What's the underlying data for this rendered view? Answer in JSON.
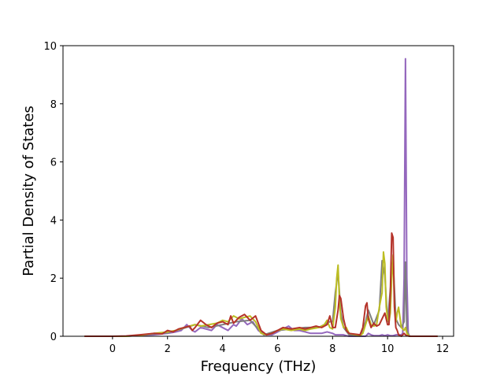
{
  "chart_data": {
    "type": "line",
    "title": "",
    "xlabel": "Frequency (THz)",
    "ylabel": "Partial Density of States",
    "xlim": [
      -1.8,
      12.4
    ],
    "ylim": [
      0,
      10
    ],
    "xticks": [
      0,
      2,
      4,
      6,
      8,
      10,
      12
    ],
    "yticks": [
      0,
      2,
      4,
      6,
      8,
      10
    ],
    "grid": false,
    "legend": "none",
    "series": [
      {
        "color": "#9467bd",
        "x": [
          -1.0,
          0.0,
          0.5,
          1.0,
          1.5,
          1.8,
          2.0,
          2.3,
          2.5,
          2.7,
          2.8,
          2.9,
          3.0,
          3.2,
          3.4,
          3.6,
          3.8,
          4.0,
          4.2,
          4.4,
          4.5,
          4.7,
          4.9,
          5.1,
          5.3,
          5.5,
          5.8,
          6.0,
          6.2,
          6.4,
          6.6,
          6.8,
          7.0,
          7.2,
          7.4,
          7.6,
          7.8,
          8.0,
          8.1,
          8.2,
          8.3,
          8.4,
          8.5,
          8.6,
          9.0,
          9.2,
          9.3,
          9.4,
          9.5,
          9.7,
          9.8,
          9.9,
          10.0,
          10.1,
          10.2,
          10.3,
          10.4,
          10.5,
          10.55,
          10.6,
          10.65,
          10.7,
          10.75,
          10.8,
          11.0,
          11.8
        ],
        "values": [
          0,
          0,
          0,
          0.03,
          0.05,
          0.08,
          0.1,
          0.15,
          0.2,
          0.4,
          0.3,
          0.2,
          0.15,
          0.3,
          0.25,
          0.2,
          0.4,
          0.3,
          0.2,
          0.4,
          0.35,
          0.6,
          0.4,
          0.5,
          0.2,
          0.05,
          0.05,
          0.15,
          0.25,
          0.35,
          0.2,
          0.2,
          0.15,
          0.1,
          0.1,
          0.1,
          0.15,
          0.1,
          0.05,
          0.05,
          0.05,
          0.05,
          0.02,
          0,
          0,
          0,
          0.1,
          0.05,
          0.02,
          0.02,
          0.05,
          0.02,
          0.05,
          0.02,
          0.02,
          0.05,
          0.05,
          0.05,
          0.1,
          2.0,
          9.55,
          2.0,
          0.1,
          0,
          0,
          0
        ]
      },
      {
        "color": "#7f7f7f",
        "x": [
          -1.0,
          0.5,
          1.5,
          2.0,
          2.5,
          3.0,
          3.5,
          4.0,
          4.5,
          5.0,
          5.5,
          6.0,
          6.5,
          7.0,
          7.5,
          7.9,
          8.0,
          8.1,
          8.2,
          8.3,
          8.4,
          8.6,
          9.0,
          9.2,
          9.3,
          9.5,
          9.7,
          9.8,
          9.9,
          10.0,
          10.1,
          10.2,
          10.3,
          10.4,
          10.5,
          10.6,
          10.65,
          10.7,
          10.8,
          11.8
        ],
        "values": [
          0,
          0,
          0.08,
          0.12,
          0.25,
          0.4,
          0.3,
          0.4,
          0.5,
          0.55,
          0.05,
          0.2,
          0.25,
          0.3,
          0.3,
          0.5,
          0.5,
          1.5,
          2.2,
          0.8,
          0.3,
          0.05,
          0,
          0.5,
          0.9,
          0.4,
          0.9,
          2.6,
          2.1,
          0.5,
          1.6,
          2.6,
          0.6,
          0.4,
          0.3,
          0.5,
          2.55,
          0.2,
          0,
          0
        ]
      },
      {
        "color": "#bcbd22",
        "x": [
          -1.0,
          0.5,
          1.0,
          1.5,
          2.0,
          2.3,
          2.6,
          2.8,
          3.0,
          3.2,
          3.5,
          3.8,
          4.0,
          4.2,
          4.4,
          4.6,
          4.8,
          5.0,
          5.2,
          5.4,
          5.6,
          5.8,
          6.0,
          6.2,
          6.5,
          6.8,
          7.0,
          7.2,
          7.5,
          7.7,
          7.8,
          7.9,
          8.0,
          8.1,
          8.15,
          8.2,
          8.25,
          8.3,
          8.4,
          8.5,
          8.6,
          9.0,
          9.1,
          9.2,
          9.3,
          9.4,
          9.5,
          9.6,
          9.7,
          9.8,
          9.85,
          9.9,
          9.95,
          10.0,
          10.05,
          10.1,
          10.15,
          10.2,
          10.25,
          10.3,
          10.35,
          10.4,
          10.5,
          10.6,
          10.65,
          10.7,
          10.8,
          11.8
        ],
        "values": [
          0,
          0,
          0.03,
          0.1,
          0.15,
          0.2,
          0.3,
          0.35,
          0.4,
          0.35,
          0.4,
          0.45,
          0.55,
          0.5,
          0.7,
          0.6,
          0.65,
          0.7,
          0.5,
          0.1,
          0.05,
          0.1,
          0.2,
          0.25,
          0.2,
          0.25,
          0.2,
          0.25,
          0.3,
          0.4,
          0.55,
          0.3,
          0.25,
          1.0,
          2.0,
          2.45,
          1.2,
          0.6,
          0.3,
          0.3,
          0.1,
          0.02,
          0.1,
          0.4,
          0.7,
          0.4,
          0.35,
          0.4,
          1.0,
          1.5,
          2.9,
          2.5,
          1.0,
          0.6,
          0.5,
          0.8,
          2.0,
          2.8,
          1.0,
          0.5,
          0.8,
          1.0,
          0.3,
          0.2,
          0.3,
          0.1,
          0,
          0
        ]
      },
      {
        "color": "#d62728",
        "stroke_color": "#b5332a",
        "x": [
          -1.0,
          0.0,
          0.5,
          1.0,
          1.5,
          1.8,
          2.0,
          2.2,
          2.4,
          2.6,
          2.8,
          2.9,
          3.0,
          3.2,
          3.4,
          3.6,
          3.8,
          4.0,
          4.2,
          4.3,
          4.4,
          4.6,
          4.8,
          5.0,
          5.2,
          5.4,
          5.6,
          5.8,
          6.0,
          6.2,
          6.5,
          6.8,
          7.0,
          7.2,
          7.4,
          7.6,
          7.8,
          7.9,
          8.0,
          8.1,
          8.2,
          8.25,
          8.3,
          8.4,
          8.5,
          8.6,
          9.0,
          9.1,
          9.2,
          9.25,
          9.3,
          9.4,
          9.5,
          9.6,
          9.7,
          9.8,
          9.9,
          10.0,
          10.05,
          10.1,
          10.15,
          10.2,
          10.25,
          10.3,
          10.35,
          10.4,
          10.5,
          10.6,
          10.65,
          10.7,
          10.8,
          11.8
        ],
        "values": [
          0,
          0,
          0.01,
          0.05,
          0.1,
          0.08,
          0.2,
          0.15,
          0.25,
          0.3,
          0.35,
          0.2,
          0.3,
          0.55,
          0.4,
          0.3,
          0.45,
          0.5,
          0.4,
          0.7,
          0.45,
          0.65,
          0.75,
          0.55,
          0.7,
          0.2,
          0.05,
          0.1,
          0.2,
          0.3,
          0.25,
          0.3,
          0.25,
          0.3,
          0.35,
          0.3,
          0.4,
          0.7,
          0.3,
          0.3,
          0.9,
          1.4,
          1.3,
          0.6,
          0.2,
          0.1,
          0.05,
          0.3,
          1.05,
          1.15,
          0.6,
          0.3,
          0.45,
          0.35,
          0.4,
          0.6,
          0.8,
          0.4,
          0.4,
          1.5,
          3.55,
          3.4,
          1.0,
          0.3,
          0.2,
          0.05,
          0,
          0.1,
          0.05,
          0.02,
          0,
          0
        ]
      }
    ]
  }
}
